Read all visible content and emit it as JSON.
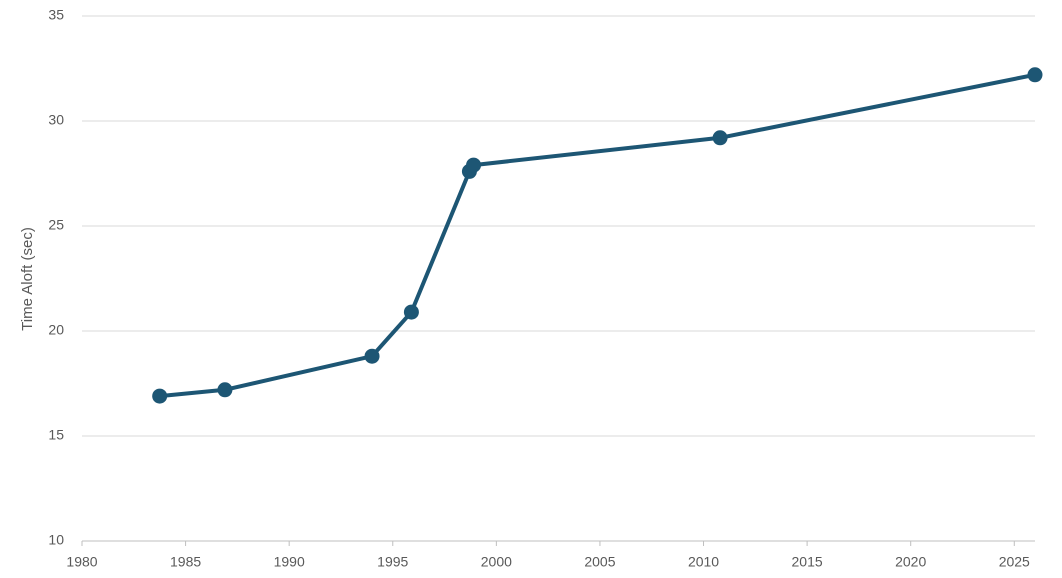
{
  "chart_data": {
    "type": "line",
    "y_label": "Time Aloft (sec)",
    "x": [
      1983.75,
      1986.9,
      1994,
      1995.9,
      1998.7,
      1998.9,
      2010.8,
      2026
    ],
    "series": [
      {
        "color": "#1d5674",
        "values": [
          16.9,
          17.2,
          18.8,
          20.9,
          27.6,
          27.9,
          29.2,
          32.2
        ]
      }
    ],
    "xlim": [
      1980,
      2026
    ],
    "xticks": [
      1980,
      1985,
      1990,
      1995,
      2000,
      2005,
      2010,
      2015,
      2020,
      2025
    ],
    "ylim": [
      10,
      35
    ],
    "yticks": [
      10,
      15,
      20,
      25,
      30,
      35
    ],
    "grid": true
  }
}
